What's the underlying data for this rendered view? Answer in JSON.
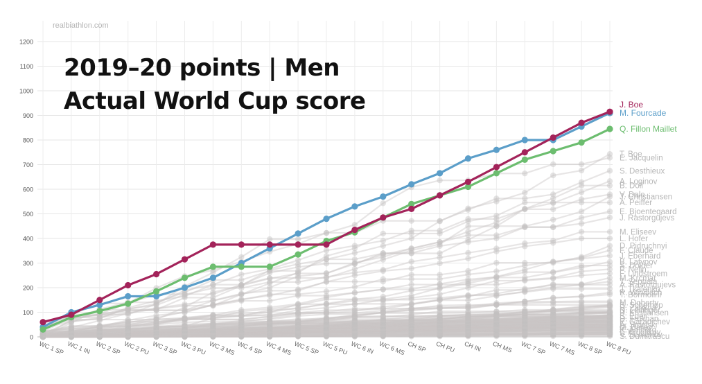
{
  "credit": "realbiathlon.com",
  "chart_data": {
    "type": "line",
    "title": "2019–20 points | Men",
    "subtitle": "Actual World Cup score",
    "xlabel": "",
    "ylabel": "",
    "ylim": [
      0,
      1200
    ],
    "yticks": [
      0,
      100,
      200,
      300,
      400,
      500,
      600,
      700,
      800,
      900,
      1000,
      1100,
      1200
    ],
    "grid": true,
    "categories": [
      "WC 1 SP",
      "WC 1 IN",
      "WC 2 SP",
      "WC 2 PU",
      "WC 3 SP",
      "WC 3 PU",
      "WC 3 MS",
      "WC 4 SP",
      "WC 4 MS",
      "WC 5 SP",
      "WC 5 PU",
      "WC 6 IN",
      "WC 6 MS",
      "CH SP",
      "CH PU",
      "CH IN",
      "CH MS",
      "WC 7 SP",
      "WC 7 MS",
      "WC 8 SP",
      "WC 8 PU"
    ],
    "series": [
      {
        "name": "J. Boe",
        "color": "#a3235a",
        "values": [
          60,
          90,
          150,
          210,
          255,
          315,
          375,
          375,
          375,
          375,
          375,
          435,
          485,
          520,
          575,
          630,
          690,
          750,
          810,
          870,
          915
        ]
      },
      {
        "name": "M. Fourcade",
        "color": "#5b9ec9",
        "values": [
          40,
          100,
          130,
          165,
          165,
          200,
          240,
          300,
          360,
          420,
          480,
          530,
          570,
          620,
          665,
          725,
          760,
          800,
          800,
          855,
          910
        ]
      },
      {
        "name": "Q. Fillon Maillet",
        "color": "#6cbd6f",
        "values": [
          30,
          80,
          105,
          135,
          185,
          240,
          285,
          285,
          285,
          335,
          390,
          425,
          485,
          540,
          575,
          610,
          665,
          720,
          755,
          790,
          845
        ]
      }
    ],
    "background_labels": [
      {
        "name": "T. Boe",
        "value": 743
      },
      {
        "name": "E. Jacquelin",
        "value": 728
      },
      {
        "name": "S. Desthieux",
        "value": 675
      },
      {
        "name": "A. Loginov",
        "value": 633
      },
      {
        "name": "B. Doll",
        "value": 615
      },
      {
        "name": "V. Dale",
        "value": 579
      },
      {
        "name": "J. Christiansen",
        "value": 570
      },
      {
        "name": "A. Peiffer",
        "value": 546
      },
      {
        "name": "E. Bjoentegaard",
        "value": 510
      },
      {
        "name": "J. Rastorgujevs",
        "value": 485
      },
      {
        "name": "M. Eliseev",
        "value": 427
      },
      {
        "name": "L. Hofer",
        "value": 400
      },
      {
        "name": "D. Pidruchnyi",
        "value": 370
      },
      {
        "name": "F. Claude",
        "value": 352
      },
      {
        "name": "J. Eberhard",
        "value": 330
      },
      {
        "name": "B. Latypov",
        "value": 305
      },
      {
        "name": "S. Dolder",
        "value": 290
      },
      {
        "name": "P. Nelin",
        "value": 275
      },
      {
        "name": "F. Lindstroem",
        "value": 258
      },
      {
        "name": "M. Krcmar",
        "value": 240
      },
      {
        "name": "T. Seppala",
        "value": 225
      },
      {
        "name": "A. Rastorgujevs",
        "value": 212
      },
      {
        "name": "J. Tkalenko",
        "value": 195
      },
      {
        "name": "R. Windisch",
        "value": 180
      },
      {
        "name": "T. Bormolini",
        "value": 172
      },
      {
        "name": "M. Doherty",
        "value": 140
      },
      {
        "name": "S. Schempp",
        "value": 130
      },
      {
        "name": "R. Zahkna",
        "value": 120
      },
      {
        "name": "N. Leitinger",
        "value": 110
      },
      {
        "name": "B. Kristiansen",
        "value": 98
      },
      {
        "name": "S. Eder",
        "value": 85
      },
      {
        "name": "D. Trukhan",
        "value": 75
      },
      {
        "name": "E. Garanichev",
        "value": 62
      },
      {
        "name": "A. Smolski",
        "value": 50
      },
      {
        "name": "M. Bailey",
        "value": 40
      },
      {
        "name": "K. Ahlberg",
        "value": 30
      },
      {
        "name": "T. Kruglikov",
        "value": 20
      },
      {
        "name": "V. Semenov",
        "value": 10
      },
      {
        "name": "S. Dumitrascu",
        "value": 3
      }
    ],
    "background_final": [
      743,
      728,
      675,
      633,
      615,
      579,
      570,
      546,
      510,
      485,
      427,
      400,
      370,
      352,
      330,
      305,
      290,
      275,
      258,
      240,
      225,
      212,
      195,
      180,
      172,
      140,
      130,
      120,
      110,
      98,
      85,
      75,
      62,
      50,
      40,
      30,
      20,
      10,
      3,
      0,
      0,
      0,
      0,
      0,
      0,
      0,
      0,
      0,
      0,
      0,
      0,
      0,
      0,
      0,
      0,
      0,
      0,
      0,
      0,
      0,
      0,
      0,
      0,
      0,
      0,
      0,
      0,
      0,
      0,
      0,
      0,
      0,
      0,
      0,
      0,
      0,
      0,
      0,
      0,
      0,
      0,
      0,
      0,
      0,
      0,
      0,
      0,
      0,
      0,
      0,
      0,
      0,
      0,
      0,
      0,
      0,
      0,
      0,
      0,
      0,
      0,
      0,
      0,
      0,
      0,
      0,
      0,
      0,
      0,
      0,
      0,
      0,
      0,
      0,
      0,
      0,
      0,
      0,
      0,
      0,
      0,
      0,
      0,
      0,
      0,
      0,
      0,
      0,
      0,
      0,
      0,
      0,
      0,
      0,
      0,
      0,
      0,
      0,
      0,
      0,
      0,
      0,
      0,
      0,
      0,
      0,
      0,
      0,
      0,
      0
    ]
  }
}
